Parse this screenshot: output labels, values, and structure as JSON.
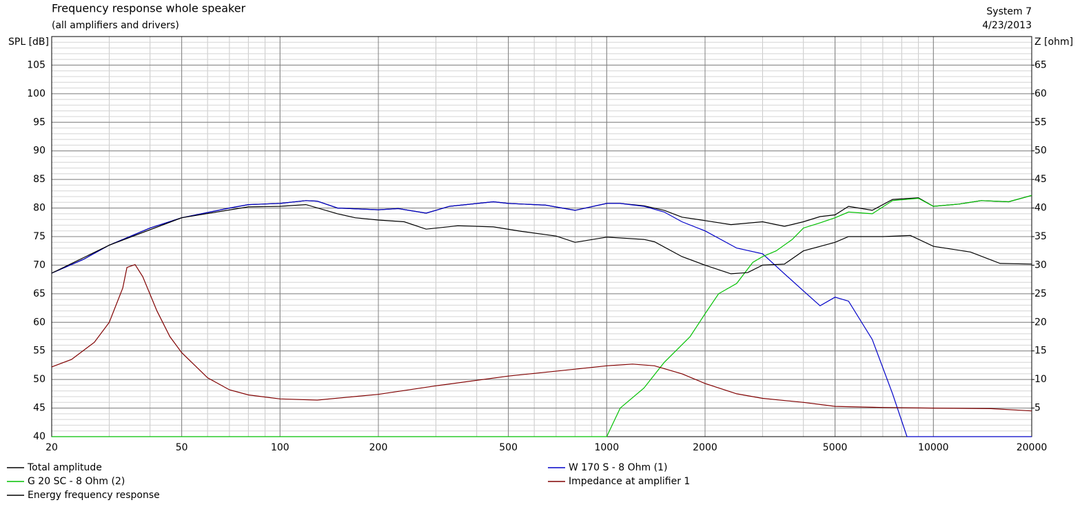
{
  "chart_data": {
    "type": "line",
    "title": "Frequency response whole speaker",
    "subtitle": "(all amplifiers and drivers)",
    "annotations": [
      "System 7",
      "4/23/2013"
    ],
    "y_label": "SPL [dB]",
    "y2_label": "Z [ohm]",
    "x_scale": "log",
    "grid": true,
    "xlim": [
      20,
      20000
    ],
    "xticks": [
      20,
      50,
      100,
      200,
      500,
      1000,
      2000,
      5000,
      10000,
      20000
    ],
    "ylim": [
      40,
      110
    ],
    "yticks": [
      40,
      45,
      50,
      55,
      60,
      65,
      70,
      75,
      80,
      85,
      90,
      95,
      100,
      105
    ],
    "y2lim": [
      0,
      70
    ],
    "y2ticks": [
      5,
      10,
      15,
      20,
      25,
      30,
      35,
      40,
      45,
      50,
      55,
      60,
      65
    ],
    "series": [
      {
        "name": "Total amplitude",
        "color": "#000000",
        "x": [
          20,
          25,
          30,
          40,
          50,
          70,
          80,
          100,
          120,
          130,
          150,
          200,
          230,
          280,
          330,
          450,
          500,
          650,
          800,
          1000,
          1100,
          1300,
          1500,
          1700,
          2000,
          2400,
          3000,
          3500,
          4000,
          4500,
          5000,
          5500,
          6500,
          7500,
          9000,
          10000,
          12000,
          14000,
          17000,
          20000
        ],
        "values": [
          68.6,
          71,
          73.5,
          76.5,
          78.3,
          80,
          80.6,
          80.8,
          81.3,
          81.2,
          80,
          79.7,
          79.9,
          79.1,
          80.3,
          81.1,
          80.8,
          80.5,
          79.6,
          80.8,
          80.8,
          80.4,
          79.6,
          78.4,
          77.8,
          77.1,
          77.6,
          76.8,
          77.6,
          78.5,
          78.8,
          80.3,
          79.6,
          81.5,
          81.8,
          80.3,
          80.7,
          81.3,
          81.1,
          82.2
        ]
      },
      {
        "name": "W 170 S - 8 Ohm (1)",
        "color": "#0000c8",
        "x": [
          20,
          25,
          30,
          40,
          50,
          70,
          80,
          100,
          120,
          130,
          150,
          200,
          230,
          280,
          330,
          450,
          500,
          650,
          800,
          1000,
          1100,
          1300,
          1500,
          1700,
          2000,
          2500,
          3000,
          3500,
          4000,
          4500,
          5000,
          5500,
          6500,
          7500,
          8300,
          10000,
          20000
        ],
        "values": [
          68.6,
          71,
          73.5,
          76.5,
          78.3,
          80,
          80.6,
          80.8,
          81.3,
          81.2,
          80,
          79.7,
          79.9,
          79.1,
          80.3,
          81.1,
          80.8,
          80.5,
          79.6,
          80.8,
          80.8,
          80.3,
          79.3,
          77.6,
          76,
          73,
          72,
          68.5,
          65.5,
          62.9,
          64.4,
          63.7,
          57,
          47.5,
          40,
          40,
          40
        ]
      },
      {
        "name": "G 20 SC - 8 Ohm (2)",
        "color": "#00c000",
        "x": [
          20,
          1000,
          1100,
          1300,
          1500,
          1800,
          2000,
          2200,
          2500,
          2800,
          3000,
          3300,
          3700,
          4000,
          4500,
          5000,
          5500,
          6500,
          7500,
          9000,
          10000,
          12000,
          14000,
          17000,
          20000
        ],
        "values": [
          40,
          40,
          45,
          48.5,
          53,
          57.5,
          61.5,
          65,
          66.8,
          70.5,
          71.5,
          72.5,
          74.5,
          76.5,
          77.4,
          78.3,
          79.3,
          79,
          81.3,
          81.7,
          80.3,
          80.7,
          81.3,
          81.1,
          82.2
        ]
      },
      {
        "name": "Impedance at amplifier 1",
        "color": "#800000",
        "axis": "y2",
        "x": [
          20,
          23,
          27,
          30,
          33,
          34,
          36,
          38,
          42,
          46,
          50,
          60,
          70,
          80,
          100,
          130,
          200,
          300,
          500,
          800,
          1000,
          1200,
          1400,
          1700,
          2000,
          2500,
          3000,
          4000,
          5000,
          7000,
          10000,
          15000,
          20000
        ],
        "values": [
          12.2,
          13.5,
          16.5,
          20,
          26,
          29.6,
          30.1,
          28,
          22,
          17.5,
          14.7,
          10.3,
          8.2,
          7.3,
          6.6,
          6.4,
          7.4,
          8.9,
          10.6,
          11.8,
          12.4,
          12.7,
          12.4,
          11,
          9.3,
          7.5,
          6.7,
          6,
          5.3,
          5.1,
          5,
          4.9,
          4.5
        ]
      },
      {
        "name": "Energy frequency response",
        "color": "#000000",
        "x": [
          20,
          30,
          50,
          80,
          100,
          120,
          150,
          170,
          200,
          240,
          280,
          350,
          450,
          550,
          700,
          800,
          1000,
          1300,
          1400,
          1700,
          2000,
          2400,
          2700,
          3000,
          3500,
          4000,
          5000,
          5500,
          7000,
          8500,
          10000,
          13000,
          16000,
          20000
        ],
        "values": [
          68.6,
          73.5,
          78.3,
          80.2,
          80.3,
          80.6,
          79,
          78.3,
          77.9,
          77.6,
          76.3,
          76.9,
          76.7,
          75.9,
          75.1,
          74,
          74.9,
          74.5,
          74.1,
          71.5,
          70,
          68.5,
          68.7,
          70,
          70.2,
          72.5,
          74,
          75,
          75,
          75.2,
          73.3,
          72.3,
          70.3,
          70.2
        ]
      }
    ]
  }
}
